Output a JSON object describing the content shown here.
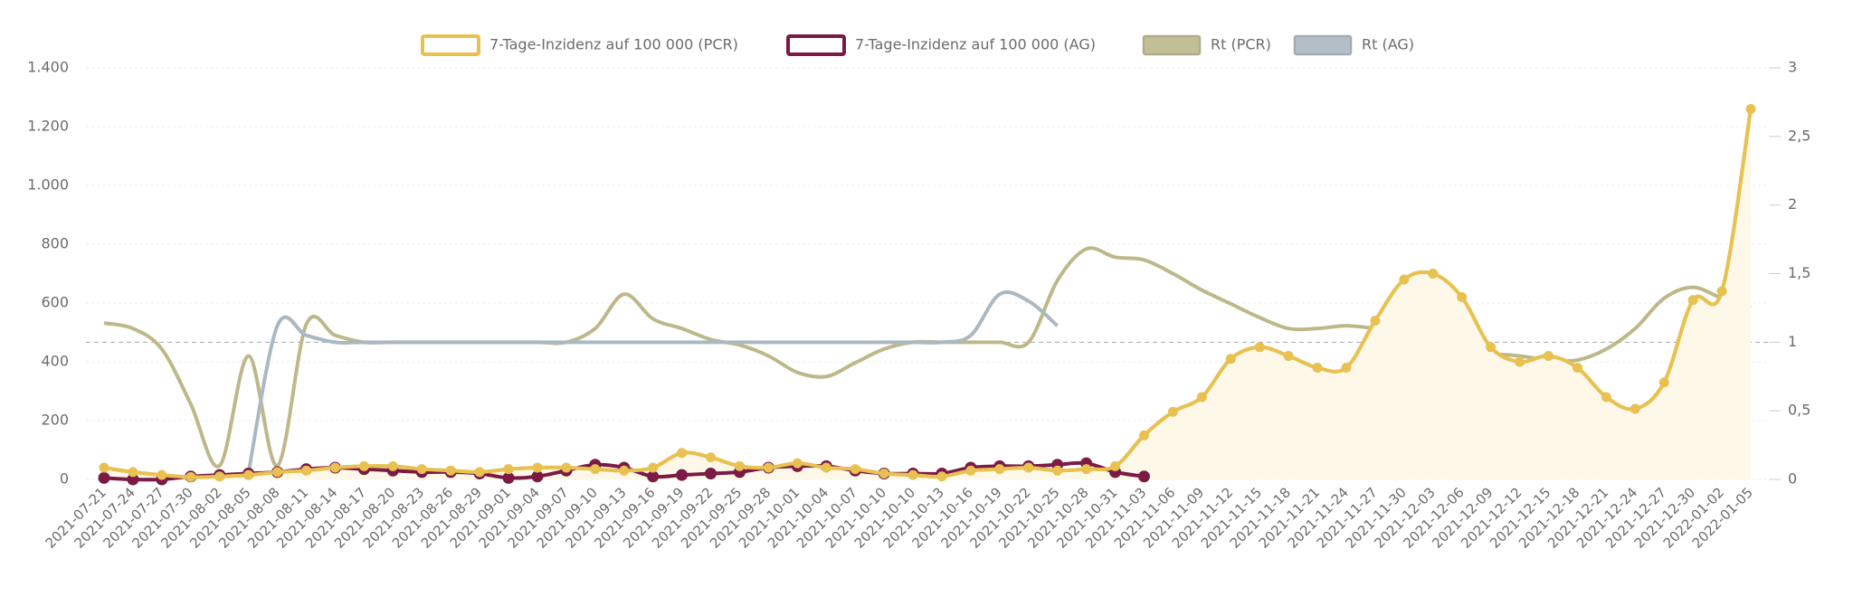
{
  "chart_data": {
    "type": "line",
    "categories": [
      "2021-07-21",
      "2021-07-24",
      "2021-07-27",
      "2021-07-30",
      "2021-08-02",
      "2021-08-05",
      "2021-08-08",
      "2021-08-11",
      "2021-08-14",
      "2021-08-17",
      "2021-08-20",
      "2021-08-23",
      "2021-08-26",
      "2021-08-29",
      "2021-09-01",
      "2021-09-04",
      "2021-09-07",
      "2021-09-10",
      "2021-09-13",
      "2021-09-16",
      "2021-09-19",
      "2021-09-22",
      "2021-09-25",
      "2021-09-28",
      "2021-10-01",
      "2021-10-04",
      "2021-10-07",
      "2021-10-10",
      "2021-10-10",
      "2021-10-13",
      "2021-10-16",
      "2021-10-19",
      "2021-10-22",
      "2021-10-25",
      "2021-10-28",
      "2021-10-31",
      "2021-11-03",
      "2021-11-06",
      "2021-11-09",
      "2021-11-12",
      "2021-11-15",
      "2021-11-18",
      "2021-11-21",
      "2021-11-24",
      "2021-11-27",
      "2021-11-30",
      "2021-12-03",
      "2021-12-06",
      "2021-12-09",
      "2021-12-12",
      "2021-12-15",
      "2021-12-18",
      "2021-12-21",
      "2021-12-24",
      "2021-12-27",
      "2021-12-30",
      "2022-01-02",
      "2022-01-05"
    ],
    "series": [
      {
        "name": "7-Tage-Inzidenz auf 100 000 (PCR)",
        "color": "#e8c150",
        "fill": "#fdf8e8",
        "values": [
          40,
          25,
          15,
          8,
          10,
          15,
          25,
          30,
          40,
          45,
          45,
          35,
          30,
          25,
          35,
          40,
          40,
          35,
          30,
          40,
          90,
          75,
          45,
          40,
          55,
          40,
          35,
          20,
          15,
          10,
          30,
          35,
          40,
          30,
          35,
          45,
          150,
          230,
          280,
          410,
          450,
          420,
          380,
          380,
          540,
          680,
          700,
          620,
          450,
          400,
          420,
          380,
          280,
          240,
          330,
          610,
          640,
          1260
        ]
      },
      {
        "name": "7-Tage-Inzidenz auf 100 000 (AG)",
        "color": "#7a1a45",
        "values": [
          5,
          0,
          0,
          10,
          15,
          20,
          25,
          35,
          40,
          35,
          30,
          25,
          25,
          20,
          5,
          10,
          30,
          50,
          40,
          10,
          15,
          20,
          25,
          40,
          45,
          45,
          30,
          20,
          20,
          20,
          40,
          45,
          45,
          50,
          55,
          25,
          10,
          null,
          null,
          null,
          null,
          null,
          null,
          null,
          null,
          null,
          null,
          null,
          null,
          null,
          null,
          null,
          null,
          null,
          null,
          null,
          null,
          null
        ]
      },
      {
        "name": "Rt (PCR)",
        "color": "#bdb88a",
        "axis": "y2",
        "values": [
          1.14,
          1.1,
          0.95,
          0.55,
          0.1,
          0.9,
          0.1,
          1.13,
          1.05,
          1.0,
          1.0,
          1.0,
          1.0,
          1.0,
          1.0,
          1.0,
          1.0,
          1.1,
          1.35,
          1.17,
          1.1,
          1.02,
          0.98,
          0.9,
          0.78,
          0.75,
          0.85,
          0.95,
          1.0,
          1.0,
          1.0,
          1.0,
          1.0,
          1.45,
          1.68,
          1.62,
          1.6,
          1.5,
          1.38,
          1.28,
          1.18,
          1.1,
          1.1,
          1.12,
          1.1,
          1.08,
          1.02,
          0.97,
          0.92,
          0.9,
          0.87,
          0.87,
          0.95,
          1.1,
          1.32,
          1.4,
          1.32,
          1.25
        ]
      },
      {
        "name": "Rt (AG)",
        "color": "#aab8c2",
        "axis": "y2",
        "values": [
          null,
          null,
          null,
          null,
          null,
          0.05,
          1.12,
          1.05,
          1.0,
          1.0,
          1.0,
          1.0,
          1.0,
          1.0,
          1.0,
          1.0,
          1.0,
          1.0,
          1.0,
          1.0,
          1.0,
          1.0,
          1.0,
          1.0,
          1.0,
          1.0,
          1.0,
          1.0,
          1.0,
          1.0,
          1.05,
          1.35,
          1.3,
          1.12,
          null,
          null,
          null,
          null,
          null,
          null,
          null,
          null,
          null,
          null,
          null,
          null,
          null,
          null,
          null,
          null,
          null,
          null,
          null,
          null,
          null,
          null,
          null,
          null
        ]
      }
    ],
    "ylim": [
      0,
      1400
    ],
    "yticks": [
      0,
      200,
      400,
      600,
      800,
      {
        "value": 1000,
        "label": "1.000"
      },
      {
        "value": 1200,
        "label": "1.200"
      },
      {
        "value": 1400,
        "label": "1.400"
      }
    ],
    "y2lim": [
      0,
      3
    ],
    "y2ticks": [
      0,
      {
        "value": 0.5,
        "label": "0,5"
      },
      1,
      {
        "value": 1.5,
        "label": "1,5"
      },
      2,
      {
        "value": 2.5,
        "label": "2,5"
      },
      3
    ],
    "y2_reference_line": 1,
    "grid": true,
    "legend": "top"
  }
}
